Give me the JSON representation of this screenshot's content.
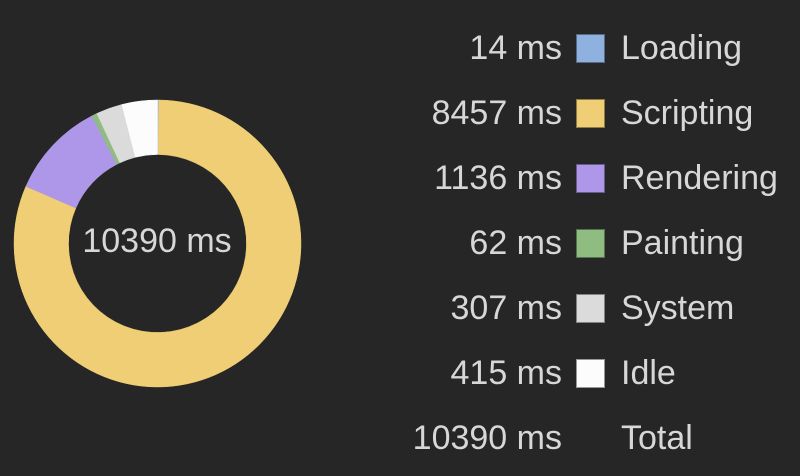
{
  "panel": {
    "name": "performance-summary"
  },
  "theme": {
    "background": "#262626",
    "text_color": "#D7D7D7"
  },
  "chart_data": {
    "type": "pie",
    "variant": "donut",
    "title": "",
    "center_label": "10390 ms",
    "unit": "ms",
    "total": 10390,
    "direction": "clockwise",
    "start_angle_deg": 0,
    "legend_position": "right",
    "categories": [
      "Loading",
      "Scripting",
      "Rendering",
      "Painting",
      "System",
      "Idle"
    ],
    "values": [
      14,
      8457,
      1136,
      62,
      307,
      415
    ],
    "colors": [
      "#8FB1E0",
      "#EFCE75",
      "#AE97E8",
      "#8FBC80",
      "#DBDBDB",
      "#FCFCFC"
    ]
  },
  "legend": {
    "rows": [
      {
        "value": "14 ms",
        "label": "Loading",
        "color": "#8FB1E0",
        "swatch": true
      },
      {
        "value": "8457 ms",
        "label": "Scripting",
        "color": "#EFCE75",
        "swatch": true
      },
      {
        "value": "1136 ms",
        "label": "Rendering",
        "color": "#AE97E8",
        "swatch": true
      },
      {
        "value": "62 ms",
        "label": "Painting",
        "color": "#8FBC80",
        "swatch": true
      },
      {
        "value": "307 ms",
        "label": "System",
        "color": "#DBDBDB",
        "swatch": true
      },
      {
        "value": "415 ms",
        "label": "Idle",
        "color": "#FCFCFC",
        "swatch": true
      },
      {
        "value": "10390 ms",
        "label": "Total",
        "color": null,
        "swatch": false
      }
    ]
  }
}
